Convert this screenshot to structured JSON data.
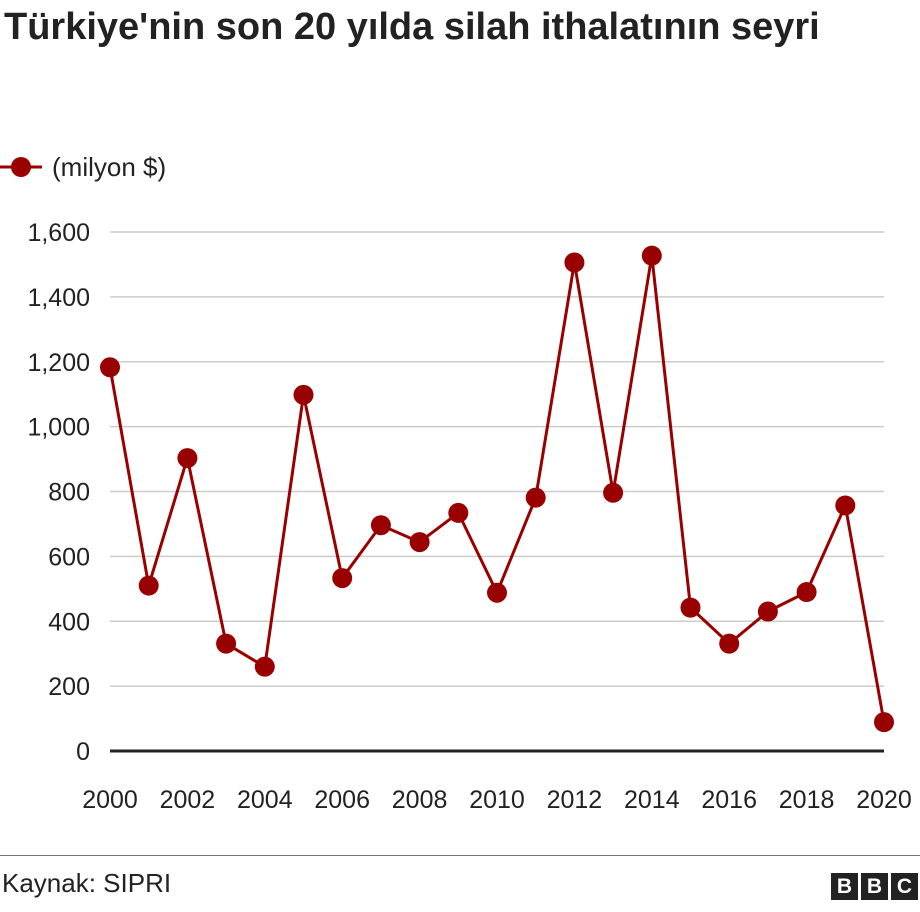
{
  "title": "Türkiye'nin son 20 yılda silah ithalatının seyri",
  "source": "Kaynak: SIPRI",
  "logo": "BBC",
  "colors": {
    "series": "#990000",
    "grid": "#cccccc",
    "axis": "#222222"
  },
  "chart_data": {
    "type": "line",
    "title": "Türkiye'nin son 20 yılda silah ithalatının seyri",
    "xlabel": "",
    "ylabel": "",
    "x": [
      2000,
      2001,
      2002,
      2003,
      2004,
      2005,
      2006,
      2007,
      2008,
      2009,
      2010,
      2011,
      2012,
      2013,
      2014,
      2015,
      2016,
      2017,
      2018,
      2019,
      2020
    ],
    "series": [
      {
        "name": "(milyon $)",
        "values": [
          1183,
          510,
          903,
          331,
          260,
          1098,
          533,
          696,
          644,
          734,
          488,
          781,
          1506,
          796,
          1527,
          442,
          331,
          430,
          490,
          757,
          89
        ]
      }
    ],
    "ylim": [
      0,
      1600
    ],
    "yticks": [
      "0",
      "200",
      "400",
      "600",
      "800",
      "1,000",
      "1,200",
      "1,400",
      "1,600"
    ],
    "xticks": [
      "2000",
      "2002",
      "2004",
      "2006",
      "2008",
      "2010",
      "2012",
      "2014",
      "2016",
      "2018",
      "2020"
    ],
    "grid": true,
    "legend_position": "top-left"
  }
}
